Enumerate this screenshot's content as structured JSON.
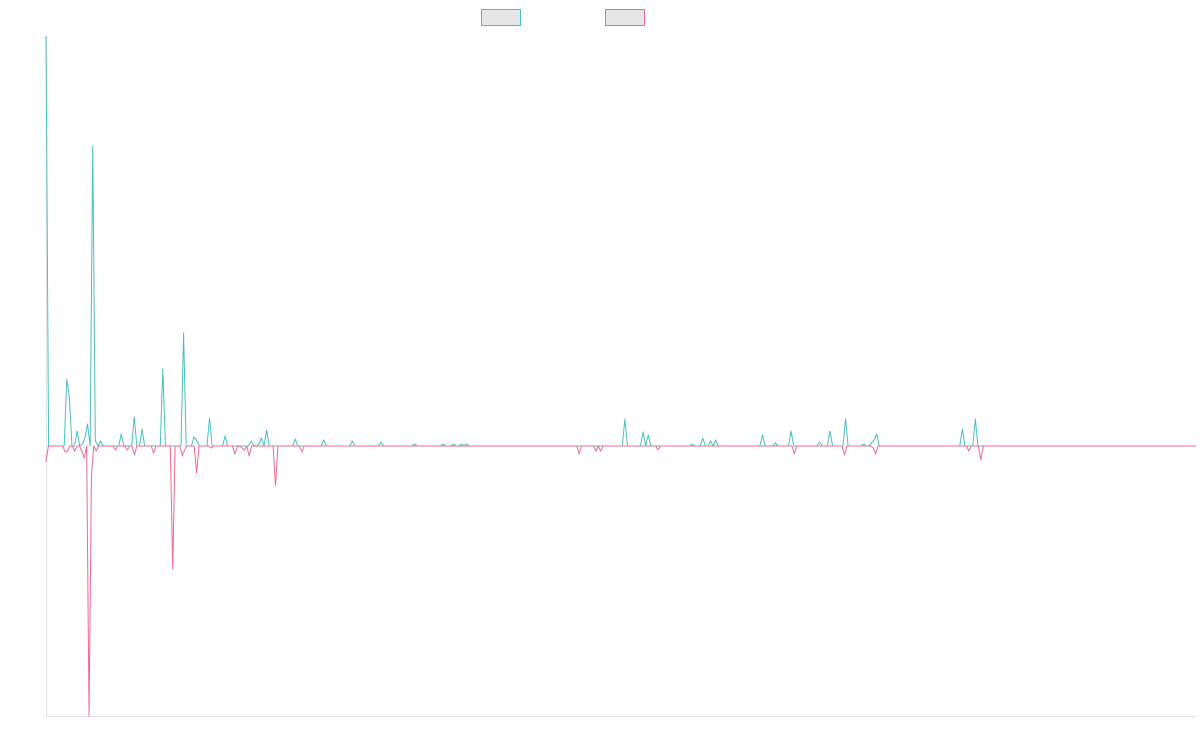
{
  "chart_data": {
    "type": "line",
    "title": "",
    "xlabel": "",
    "ylabel": "",
    "grid": false,
    "legend": "top-center",
    "ylim": [
      -2.7,
      4.1
    ],
    "series": [
      {
        "name": "",
        "color": "#4bc0c0",
        "fill": "#e6e6e6",
        "values": [
          4.1,
          0,
          0,
          0,
          0,
          0,
          0,
          0,
          0.67,
          0.49,
          0,
          0,
          0.15,
          0,
          0.02,
          0.08,
          0.22,
          0,
          3,
          0.05,
          0,
          0.05,
          0,
          0,
          0,
          0,
          0,
          0,
          0,
          0.12,
          0,
          0,
          0,
          0,
          0.29,
          0,
          0,
          0.17,
          0,
          0,
          0,
          0,
          0,
          0,
          0,
          0.77,
          0,
          0,
          0,
          0,
          0,
          0,
          0,
          1.13,
          0,
          0,
          0,
          0.09,
          0.06,
          0,
          0,
          0,
          0,
          0.28,
          0,
          0,
          0,
          0,
          0,
          0.1,
          0,
          0,
          0,
          0,
          0,
          0,
          0,
          0,
          0,
          0.05,
          0.01,
          0,
          0.02,
          0.08,
          0,
          0.16,
          0,
          0,
          0,
          0,
          0,
          0,
          0,
          0,
          0,
          0,
          0.07,
          0,
          0,
          0,
          0,
          0,
          0,
          0,
          0,
          0,
          0,
          0.06,
          0,
          0,
          0,
          0,
          0,
          0,
          0,
          0,
          0,
          0,
          0.05,
          0,
          0,
          0,
          0,
          0,
          0,
          0,
          0,
          0,
          0,
          0.04,
          0,
          0,
          0,
          0,
          0,
          0,
          0,
          0,
          0,
          0,
          0,
          0,
          0.02,
          0,
          0,
          0,
          0,
          0,
          0,
          0,
          0,
          0,
          0,
          0.02,
          0,
          0,
          0,
          0.02,
          0,
          0,
          0.02,
          0,
          0.02,
          0,
          0,
          0,
          0,
          0,
          0,
          0,
          0,
          0,
          0,
          0,
          0,
          0,
          0,
          0,
          0,
          0,
          0,
          0,
          0,
          0,
          0,
          0,
          0,
          0,
          0,
          0,
          0,
          0,
          0,
          0,
          0,
          0,
          0,
          0,
          0,
          0,
          0,
          0,
          0,
          0,
          0,
          0,
          0,
          0,
          0,
          0,
          0,
          0,
          0,
          0,
          0,
          0,
          0,
          0,
          0,
          0,
          0,
          0,
          0,
          0.27,
          0,
          0,
          0,
          0,
          0,
          0,
          0.14,
          0,
          0.11,
          0,
          0,
          0,
          0,
          0,
          0,
          0,
          0,
          0,
          0,
          0,
          0,
          0,
          0,
          0,
          0,
          0.02,
          0,
          0,
          0,
          0.08,
          0,
          0,
          0.05,
          0,
          0.06,
          0,
          0,
          0,
          0,
          0,
          0,
          0,
          0,
          0,
          0,
          0,
          0,
          0,
          0,
          0,
          0,
          0,
          0.11,
          0,
          0,
          0,
          0,
          0.03,
          0,
          0,
          0,
          0,
          0,
          0.15,
          0,
          0,
          0,
          0,
          0,
          0,
          0,
          0,
          0,
          0,
          0.04,
          0,
          0,
          0,
          0.15,
          0,
          0,
          0,
          0,
          0,
          0.27,
          0,
          0,
          0,
          0,
          0,
          0,
          0.02,
          0,
          0,
          0.03,
          0.06,
          0.12,
          0,
          0,
          0,
          0,
          0,
          0,
          0,
          0,
          0,
          0,
          0,
          0,
          0,
          0,
          0,
          0,
          0,
          0,
          0,
          0,
          0,
          0,
          0,
          0,
          0,
          0,
          0,
          0,
          0,
          0,
          0,
          0,
          0.17,
          0,
          0,
          0,
          0,
          0.27,
          0,
          0,
          0,
          0,
          0,
          0,
          0,
          0,
          0,
          0,
          0,
          0,
          0,
          0,
          0,
          0,
          0,
          0,
          0,
          0,
          0,
          0,
          0,
          0,
          0,
          0,
          0,
          0,
          0,
          0,
          0,
          0,
          0,
          0,
          0,
          0,
          0,
          0,
          0,
          0,
          0,
          0,
          0,
          0,
          0,
          0,
          0,
          0,
          0,
          0,
          0,
          0,
          0,
          0,
          0,
          0,
          0,
          0,
          0,
          0,
          0,
          0,
          0,
          0,
          0,
          0,
          0,
          0,
          0,
          0,
          0,
          0,
          0,
          0,
          0,
          0,
          0,
          0,
          0,
          0,
          0,
          0,
          0,
          0,
          0
        ]
      },
      {
        "name": "",
        "color": "#f06b8e",
        "fill": "#e6e6e6",
        "values": [
          -0.16,
          0,
          0,
          0,
          0,
          0,
          0,
          0,
          -0.06,
          -0.05,
          0,
          0,
          -0.05,
          0,
          0,
          -0.05,
          -0.12,
          0,
          -2.7,
          -0.3,
          0,
          -0.05,
          0,
          0,
          0,
          0,
          0,
          0,
          0,
          -0.04,
          0,
          0,
          0,
          0,
          -0.04,
          0,
          0,
          -0.09,
          0,
          0,
          0,
          0,
          0,
          0,
          0,
          -0.07,
          0,
          0,
          0,
          0,
          0,
          0,
          0,
          -1.23,
          0,
          0,
          0,
          -0.1,
          -0.04,
          0,
          0,
          0,
          0,
          -0.27,
          0,
          0,
          0,
          0,
          0,
          -0.02,
          0,
          0,
          0,
          0,
          0,
          0,
          0,
          0,
          0,
          -0.08,
          -0.01,
          0,
          -0.02,
          -0.04,
          0,
          -0.1,
          0,
          0,
          0,
          0,
          0,
          0,
          0,
          0,
          0,
          0,
          -0.4,
          0,
          0,
          0,
          0,
          0,
          0,
          0,
          0,
          0,
          0,
          -0.06,
          0,
          0,
          0,
          0,
          0,
          0,
          0,
          0,
          0,
          0,
          0,
          0,
          0,
          0,
          0,
          0,
          0,
          0,
          0,
          0,
          0,
          0,
          0,
          0,
          0,
          0,
          0,
          0,
          0,
          0,
          0,
          0,
          0,
          0,
          0,
          0,
          0,
          0,
          0,
          0,
          0,
          0,
          0,
          0,
          0,
          0,
          0,
          0,
          0,
          0,
          0,
          0,
          0,
          0,
          0,
          0,
          0,
          0,
          0,
          0,
          0,
          0,
          0,
          0,
          0,
          0,
          0,
          0,
          0,
          0,
          0,
          0,
          0,
          0,
          0,
          0,
          0,
          0,
          0,
          0,
          0,
          0,
          0,
          0,
          0,
          0,
          0,
          0,
          0,
          0,
          0,
          0,
          0,
          0,
          0,
          0,
          0,
          0,
          0,
          0,
          0,
          0,
          0,
          0,
          0,
          0,
          0,
          0,
          0,
          0,
          0,
          0,
          0,
          0,
          0,
          -0.08,
          0,
          0,
          0,
          0,
          0,
          0,
          -0.05,
          0,
          -0.05,
          0,
          0,
          0,
          0,
          0,
          0,
          0,
          0,
          0,
          0,
          0,
          0,
          0,
          0,
          0,
          0,
          0,
          0,
          0,
          0,
          0,
          0,
          0,
          -0.04,
          0,
          0,
          0,
          0,
          0,
          0,
          0,
          0,
          0,
          0,
          0,
          0,
          0,
          0,
          0,
          0,
          0,
          0,
          0,
          0,
          0,
          0,
          0,
          0,
          0,
          0,
          0,
          0,
          0,
          0,
          0,
          0,
          0,
          0,
          0,
          0,
          0,
          0,
          0,
          0,
          0,
          0,
          0,
          0,
          0,
          0,
          0,
          0,
          0,
          0,
          0,
          0,
          0,
          0,
          0,
          0,
          -0.08,
          0,
          0,
          0,
          0,
          0,
          0,
          0,
          0,
          0,
          0,
          0,
          0,
          0,
          0,
          0,
          0,
          0,
          0,
          0,
          0,
          -0.09,
          0,
          0,
          0,
          0,
          0,
          0,
          0,
          0,
          0,
          0,
          0,
          -0.02,
          -0.08,
          0,
          0,
          0,
          0,
          0,
          0,
          0,
          0,
          0,
          0,
          0,
          0,
          0,
          0,
          0,
          0,
          0,
          0,
          0,
          0,
          0,
          0,
          0,
          0,
          0,
          0,
          0,
          0,
          0,
          0,
          0,
          0,
          0,
          0,
          0,
          0,
          0,
          0,
          -0.05,
          0,
          0,
          0,
          0,
          -0.14,
          0,
          0,
          0,
          0,
          0,
          0,
          0,
          0,
          0,
          0,
          0,
          0,
          0,
          0,
          0,
          0,
          0,
          0,
          0,
          0,
          0,
          0,
          0,
          0,
          0,
          0,
          0,
          0,
          0,
          0,
          0,
          0,
          0,
          0,
          0,
          0,
          0,
          0,
          0,
          0,
          0,
          0,
          0,
          0,
          0,
          0,
          0,
          0,
          0,
          0,
          0,
          0,
          0,
          0,
          0,
          0,
          0,
          0,
          0,
          0,
          0,
          0,
          0,
          0,
          0,
          0,
          0,
          0,
          0,
          0,
          0,
          0,
          0,
          0,
          0,
          0,
          0,
          0,
          0,
          0,
          0,
          0,
          0,
          0,
          0,
          0,
          0,
          0,
          0,
          0
        ]
      }
    ]
  }
}
